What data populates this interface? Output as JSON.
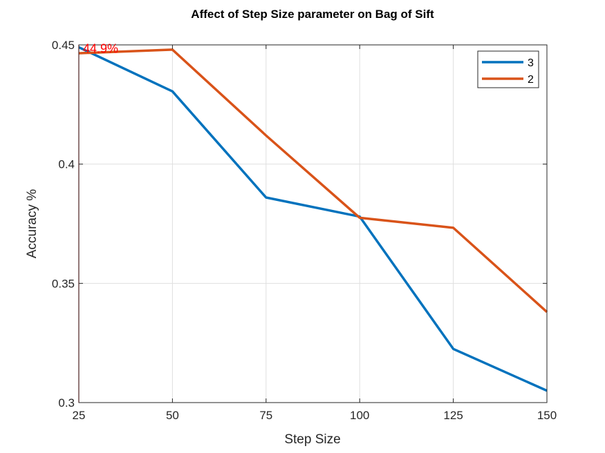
{
  "chart_data": {
    "type": "line",
    "title": "Affect of Step Size parameter on Bag of Sift",
    "xlabel": "Step Size",
    "ylabel": "Accuracy %",
    "xlim": [
      25,
      150
    ],
    "ylim": [
      0.3,
      0.45
    ],
    "xticks": [
      25,
      50,
      75,
      100,
      125,
      150
    ],
    "xtick_labels": [
      "25",
      "50",
      "75",
      "100",
      "125",
      "150"
    ],
    "yticks": [
      0.3,
      0.35,
      0.4,
      0.45
    ],
    "ytick_labels": [
      "0.3",
      "0.35",
      "0.4",
      "0.45"
    ],
    "grid": true,
    "legend_position": "top-right",
    "x": [
      25,
      50,
      75,
      100,
      125,
      150
    ],
    "series": [
      {
        "name": "3",
        "color": "#0072bd",
        "values": [
          0.449,
          0.4305,
          0.386,
          0.378,
          0.3225,
          0.305
        ]
      },
      {
        "name": "2",
        "color": "#d95319",
        "values": [
          0.4465,
          0.448,
          0.412,
          0.3775,
          0.3733,
          0.338
        ]
      }
    ],
    "annotations": [
      {
        "text": "44.9%",
        "x": 25,
        "y": 0.449,
        "color": "#ff0000"
      }
    ],
    "marker_line": {
      "x": 25,
      "color": "#ff0000"
    }
  }
}
